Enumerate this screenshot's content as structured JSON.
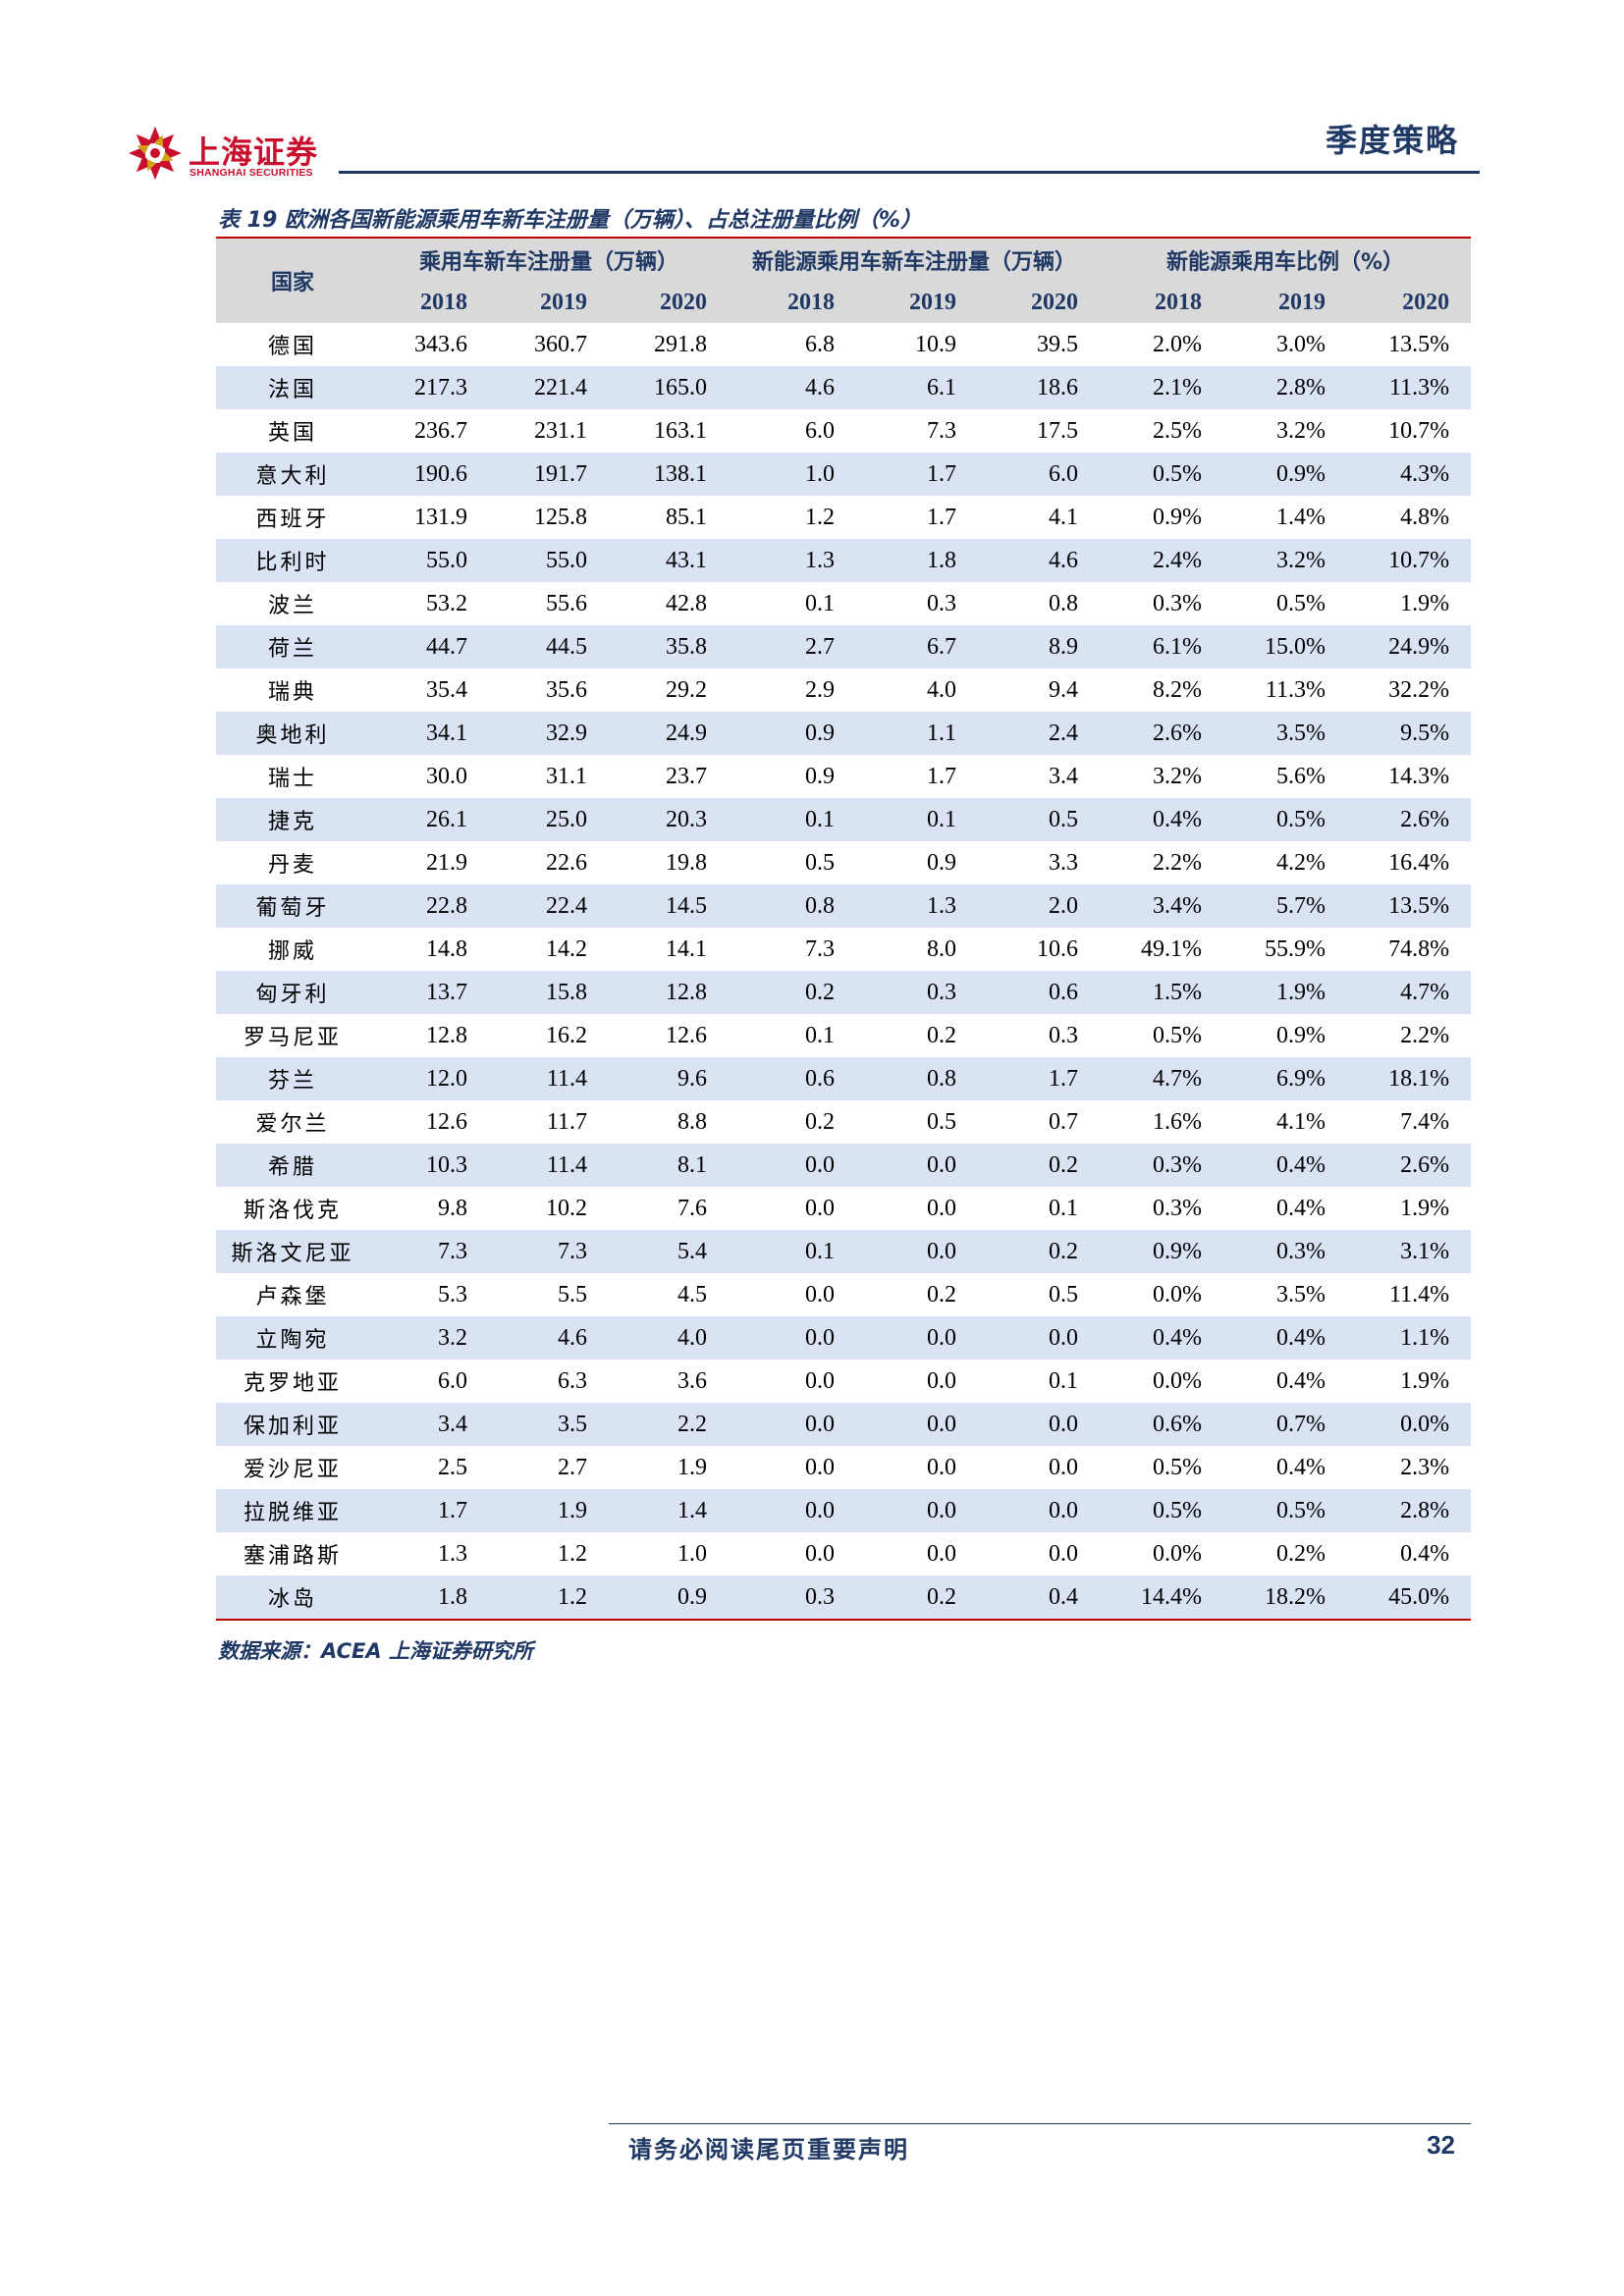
{
  "header": {
    "logo_cn": "上海证券",
    "logo_en": "SHANGHAI SECURITIES",
    "section_title": "季度策略",
    "colors": {
      "brand_red": "#c8102e",
      "navy": "#1f3864",
      "table_red": "#c00000",
      "stripe": "#dae3f3",
      "header_gray": "#d9d9d9"
    }
  },
  "caption": "表 19 欧洲各国新能源乘用车新车注册量（万辆）、占总注册量比例（%）",
  "table": {
    "country_header": "国家",
    "group_headers": [
      "乘用车新车注册量（万辆）",
      "新能源乘用车新车注册量（万辆）",
      "新能源乘用车比例（%）"
    ],
    "years": [
      "2018",
      "2019",
      "2020",
      "2018",
      "2019",
      "2020",
      "2018",
      "2019",
      "2020"
    ],
    "rows": [
      [
        "德国",
        "343.6",
        "360.7",
        "291.8",
        "6.8",
        "10.9",
        "39.5",
        "2.0%",
        "3.0%",
        "13.5%"
      ],
      [
        "法国",
        "217.3",
        "221.4",
        "165.0",
        "4.6",
        "6.1",
        "18.6",
        "2.1%",
        "2.8%",
        "11.3%"
      ],
      [
        "英国",
        "236.7",
        "231.1",
        "163.1",
        "6.0",
        "7.3",
        "17.5",
        "2.5%",
        "3.2%",
        "10.7%"
      ],
      [
        "意大利",
        "190.6",
        "191.7",
        "138.1",
        "1.0",
        "1.7",
        "6.0",
        "0.5%",
        "0.9%",
        "4.3%"
      ],
      [
        "西班牙",
        "131.9",
        "125.8",
        "85.1",
        "1.2",
        "1.7",
        "4.1",
        "0.9%",
        "1.4%",
        "4.8%"
      ],
      [
        "比利时",
        "55.0",
        "55.0",
        "43.1",
        "1.3",
        "1.8",
        "4.6",
        "2.4%",
        "3.2%",
        "10.7%"
      ],
      [
        "波兰",
        "53.2",
        "55.6",
        "42.8",
        "0.1",
        "0.3",
        "0.8",
        "0.3%",
        "0.5%",
        "1.9%"
      ],
      [
        "荷兰",
        "44.7",
        "44.5",
        "35.8",
        "2.7",
        "6.7",
        "8.9",
        "6.1%",
        "15.0%",
        "24.9%"
      ],
      [
        "瑞典",
        "35.4",
        "35.6",
        "29.2",
        "2.9",
        "4.0",
        "9.4",
        "8.2%",
        "11.3%",
        "32.2%"
      ],
      [
        "奥地利",
        "34.1",
        "32.9",
        "24.9",
        "0.9",
        "1.1",
        "2.4",
        "2.6%",
        "3.5%",
        "9.5%"
      ],
      [
        "瑞士",
        "30.0",
        "31.1",
        "23.7",
        "0.9",
        "1.7",
        "3.4",
        "3.2%",
        "5.6%",
        "14.3%"
      ],
      [
        "捷克",
        "26.1",
        "25.0",
        "20.3",
        "0.1",
        "0.1",
        "0.5",
        "0.4%",
        "0.5%",
        "2.6%"
      ],
      [
        "丹麦",
        "21.9",
        "22.6",
        "19.8",
        "0.5",
        "0.9",
        "3.3",
        "2.2%",
        "4.2%",
        "16.4%"
      ],
      [
        "葡萄牙",
        "22.8",
        "22.4",
        "14.5",
        "0.8",
        "1.3",
        "2.0",
        "3.4%",
        "5.7%",
        "13.5%"
      ],
      [
        "挪威",
        "14.8",
        "14.2",
        "14.1",
        "7.3",
        "8.0",
        "10.6",
        "49.1%",
        "55.9%",
        "74.8%"
      ],
      [
        "匈牙利",
        "13.7",
        "15.8",
        "12.8",
        "0.2",
        "0.3",
        "0.6",
        "1.5%",
        "1.9%",
        "4.7%"
      ],
      [
        "罗马尼亚",
        "12.8",
        "16.2",
        "12.6",
        "0.1",
        "0.2",
        "0.3",
        "0.5%",
        "0.9%",
        "2.2%"
      ],
      [
        "芬兰",
        "12.0",
        "11.4",
        "9.6",
        "0.6",
        "0.8",
        "1.7",
        "4.7%",
        "6.9%",
        "18.1%"
      ],
      [
        "爱尔兰",
        "12.6",
        "11.7",
        "8.8",
        "0.2",
        "0.5",
        "0.7",
        "1.6%",
        "4.1%",
        "7.4%"
      ],
      [
        "希腊",
        "10.3",
        "11.4",
        "8.1",
        "0.0",
        "0.0",
        "0.2",
        "0.3%",
        "0.4%",
        "2.6%"
      ],
      [
        "斯洛伐克",
        "9.8",
        "10.2",
        "7.6",
        "0.0",
        "0.0",
        "0.1",
        "0.3%",
        "0.4%",
        "1.9%"
      ],
      [
        "斯洛文尼亚",
        "7.3",
        "7.3",
        "5.4",
        "0.1",
        "0.0",
        "0.2",
        "0.9%",
        "0.3%",
        "3.1%"
      ],
      [
        "卢森堡",
        "5.3",
        "5.5",
        "4.5",
        "0.0",
        "0.2",
        "0.5",
        "0.0%",
        "3.5%",
        "11.4%"
      ],
      [
        "立陶宛",
        "3.2",
        "4.6",
        "4.0",
        "0.0",
        "0.0",
        "0.0",
        "0.4%",
        "0.4%",
        "1.1%"
      ],
      [
        "克罗地亚",
        "6.0",
        "6.3",
        "3.6",
        "0.0",
        "0.0",
        "0.1",
        "0.0%",
        "0.4%",
        "1.9%"
      ],
      [
        "保加利亚",
        "3.4",
        "3.5",
        "2.2",
        "0.0",
        "0.0",
        "0.0",
        "0.6%",
        "0.7%",
        "0.0%"
      ],
      [
        "爱沙尼亚",
        "2.5",
        "2.7",
        "1.9",
        "0.0",
        "0.0",
        "0.0",
        "0.5%",
        "0.4%",
        "2.3%"
      ],
      [
        "拉脱维亚",
        "1.7",
        "1.9",
        "1.4",
        "0.0",
        "0.0",
        "0.0",
        "0.5%",
        "0.5%",
        "2.8%"
      ],
      [
        "塞浦路斯",
        "1.3",
        "1.2",
        "1.0",
        "0.0",
        "0.0",
        "0.0",
        "0.0%",
        "0.2%",
        "0.4%"
      ],
      [
        "冰岛",
        "1.8",
        "1.2",
        "0.9",
        "0.3",
        "0.2",
        "0.4",
        "14.4%",
        "18.2%",
        "45.0%"
      ]
    ]
  },
  "source": "数据来源：ACEA  上海证券研究所",
  "footer": {
    "note": "请务必阅读尾页重要声明",
    "page": "32"
  }
}
